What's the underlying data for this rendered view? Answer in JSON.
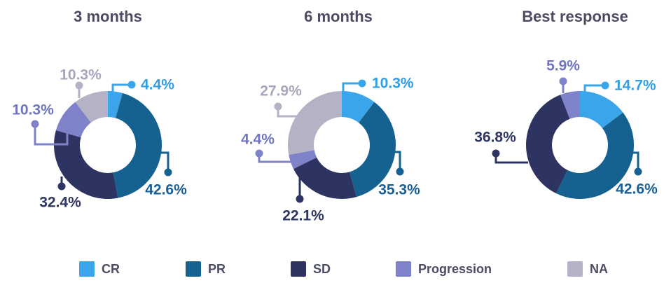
{
  "figure": {
    "background": "#ffffff",
    "title_color": "#4B4B63"
  },
  "series_colors": {
    "CR": {
      "slice": "#3AA5EA",
      "label": "#2F9EE5"
    },
    "PR": {
      "slice": "#15618F",
      "label": "#1A6095"
    },
    "SD": {
      "slice": "#2E3461",
      "label": "#2E3561"
    },
    "Progression": {
      "slice": "#7E82C8",
      "label": "#7074BF"
    },
    "NA": {
      "slice": "#B6B2C6",
      "label": "#A9A5BB"
    }
  },
  "legend": {
    "items": [
      {
        "label": "CR"
      },
      {
        "label": "PR"
      },
      {
        "label": "SD"
      },
      {
        "label": "Progression"
      },
      {
        "label": "NA"
      }
    ]
  },
  "chart_data": [
    {
      "type": "donut",
      "title": "3 months",
      "unit": "%",
      "legend_position": "bottom",
      "categories": [
        "CR",
        "PR",
        "SD",
        "Progression",
        "NA"
      ],
      "values": [
        4.4,
        42.6,
        32.4,
        10.3,
        10.3
      ],
      "labels_display": [
        "4.4%",
        "42.6%",
        "32.4%",
        "10.3%",
        "10.3%"
      ]
    },
    {
      "type": "donut",
      "title": "6 months",
      "unit": "%",
      "legend_position": "bottom",
      "categories": [
        "CR",
        "PR",
        "SD",
        "Progression",
        "NA"
      ],
      "values": [
        10.3,
        35.3,
        22.1,
        4.4,
        27.9
      ],
      "labels_display": [
        "10.3%",
        "35.3%",
        "22.1%",
        "4.4%",
        "27.9%"
      ]
    },
    {
      "type": "donut",
      "title": "Best response",
      "unit": "%",
      "legend_position": "bottom",
      "categories": [
        "CR",
        "PR",
        "SD",
        "Progression"
      ],
      "values": [
        14.7,
        42.6,
        36.8,
        5.9
      ],
      "labels_display": [
        "14.7%",
        "42.6%",
        "36.8%",
        "5.9%"
      ]
    }
  ]
}
